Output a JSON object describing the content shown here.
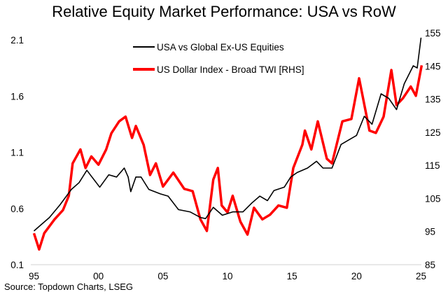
{
  "chart_data": {
    "type": "line",
    "title": "Relative Equity Market Performance: USA vs RoW",
    "source": "Source: Topdown Charts, LSEG",
    "xlabel": "",
    "x_ticks": [
      "95",
      "00",
      "05",
      "10",
      "15",
      "20",
      "25"
    ],
    "x_tick_values": [
      1995,
      2000,
      2005,
      2010,
      2015,
      2020,
      2025
    ],
    "xlim": [
      1995,
      2025
    ],
    "left_axis": {
      "ticks": [
        "0.1",
        "0.6",
        "1.1",
        "1.6",
        "2.1"
      ],
      "ylim": [
        0.1,
        2.1
      ]
    },
    "right_axis": {
      "ticks": [
        "85",
        "95",
        "105",
        "115",
        "125",
        "135",
        "145",
        "155"
      ],
      "ylim": [
        85,
        155
      ]
    },
    "grid": false,
    "legend_position": "top-center",
    "series": [
      {
        "name": "USA vs Global Ex-US Equities",
        "axis": "left",
        "color": "#000000",
        "x": [
          1995.0,
          1995.4,
          1996.2,
          1997.0,
          1997.9,
          1998.5,
          1999.1,
          1999.5,
          2000.1,
          2000.8,
          2001.4,
          2002.0,
          2002.3,
          2002.5,
          2002.9,
          2003.3,
          2003.9,
          2004.8,
          2005.4,
          2006.2,
          2007.1,
          2007.9,
          2008.3,
          2008.9,
          2009.6,
          2010.4,
          2011.2,
          2011.9,
          2012.5,
          2013.1,
          2013.6,
          2014.4,
          2014.9,
          2015.4,
          2016.2,
          2016.9,
          2017.4,
          2018.1,
          2018.8,
          2019.4,
          2020.0,
          2020.6,
          2021.2,
          2021.9,
          2022.5,
          2023.1,
          2023.7,
          2024.4,
          2024.7,
          2025.0
        ],
        "values": [
          0.4,
          0.44,
          0.52,
          0.63,
          0.77,
          0.83,
          0.94,
          0.88,
          0.79,
          0.9,
          0.88,
          0.96,
          0.88,
          0.75,
          0.88,
          0.88,
          0.77,
          0.73,
          0.71,
          0.59,
          0.57,
          0.52,
          0.51,
          0.61,
          0.54,
          0.57,
          0.57,
          0.65,
          0.71,
          0.67,
          0.76,
          0.79,
          0.88,
          0.92,
          0.96,
          1.02,
          0.96,
          0.96,
          1.17,
          1.21,
          1.25,
          1.42,
          1.35,
          1.62,
          1.58,
          1.48,
          1.71,
          1.87,
          1.85,
          2.12
        ]
      },
      {
        "name": "US Dollar Index - Broad TWI [RHS]",
        "axis": "right",
        "color": "#ff0000",
        "x": [
          1995.0,
          1995.4,
          1995.8,
          1996.6,
          1997.25,
          1997.7,
          1998.0,
          1998.6,
          1999.0,
          1999.45,
          2000.0,
          2000.6,
          2001.0,
          2001.6,
          2002.1,
          2002.6,
          2002.9,
          2003.5,
          2004.0,
          2004.45,
          2005.0,
          2005.8,
          2006.65,
          2007.3,
          2007.9,
          2008.4,
          2008.9,
          2009.25,
          2009.55,
          2010.0,
          2010.4,
          2011.0,
          2011.55,
          2012.05,
          2012.7,
          2013.3,
          2013.95,
          2014.6,
          2015.1,
          2015.8,
          2016.0,
          2016.5,
          2017.0,
          2017.7,
          2018.1,
          2018.9,
          2019.6,
          2020.2,
          2021.0,
          2021.5,
          2022.1,
          2022.7,
          2023.1,
          2023.6,
          2024.2,
          2024.6,
          2025.05
        ],
        "values": [
          94.5,
          89.6,
          94.5,
          98.7,
          101.5,
          105.8,
          115.6,
          119.8,
          114.2,
          117.7,
          115.2,
          119.8,
          124.7,
          128.3,
          129.7,
          123.3,
          126.9,
          121.2,
          112.1,
          115.6,
          108.6,
          112.8,
          107.9,
          107.2,
          98.7,
          95.2,
          110.7,
          114.2,
          102.9,
          100.8,
          105.8,
          98.0,
          94.1,
          102.2,
          98.7,
          100.1,
          102.9,
          102.2,
          114.2,
          121.2,
          125.5,
          119.8,
          128.3,
          117.0,
          115.6,
          128.3,
          129.0,
          141.3,
          125.5,
          124.8,
          129.7,
          143.8,
          133.2,
          135.3,
          138.8,
          136.0,
          145.2
        ]
      }
    ]
  }
}
